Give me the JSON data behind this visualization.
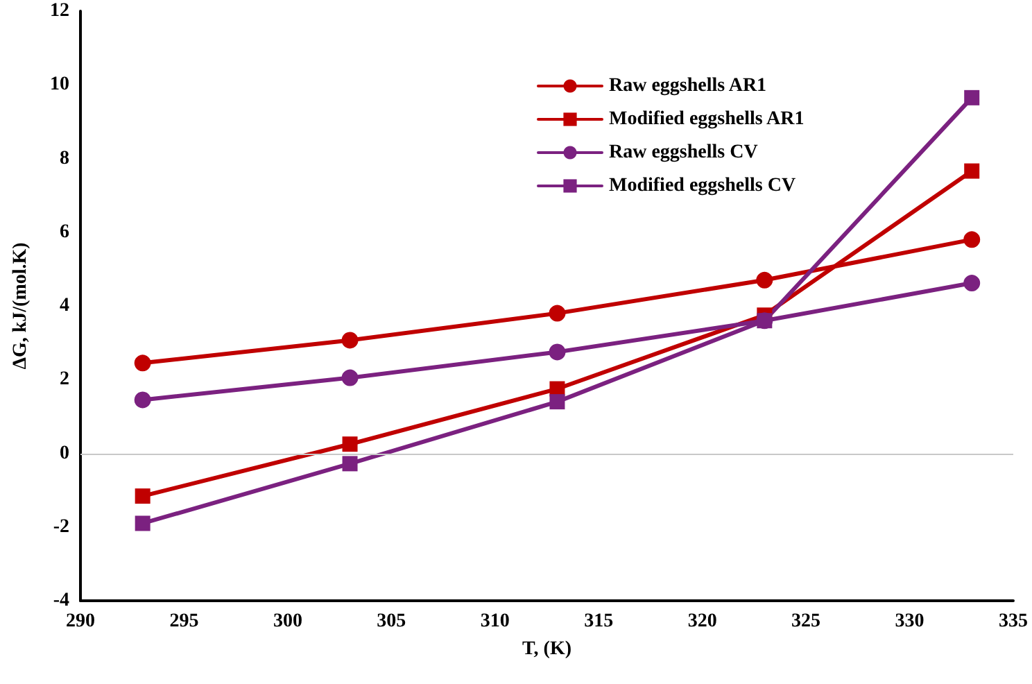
{
  "chart_data": {
    "type": "line",
    "xlabel": "T, (K)",
    "ylabel": "ΔG, kJ/(mol.K)",
    "x": [
      293,
      303,
      313,
      323,
      333
    ],
    "series": [
      {
        "name": "Raw eggshells AR1",
        "color": "#c00000",
        "marker": "circle",
        "values": [
          2.45,
          3.07,
          3.8,
          4.7,
          5.8
        ]
      },
      {
        "name": "Modified eggshells AR1",
        "color": "#c00000",
        "marker": "square",
        "values": [
          -1.16,
          0.25,
          1.75,
          3.75,
          7.66
        ]
      },
      {
        "name": "Raw eggshells CV",
        "color": "#7b2180",
        "marker": "circle",
        "values": [
          1.45,
          2.05,
          2.75,
          3.6,
          4.62
        ]
      },
      {
        "name": "Modified eggshells CV",
        "color": "#7b2180",
        "marker": "square",
        "values": [
          -1.9,
          -0.28,
          1.4,
          3.6,
          9.65
        ]
      }
    ],
    "xlim": [
      290,
      335
    ],
    "xticks": [
      290,
      295,
      300,
      305,
      310,
      315,
      320,
      325,
      330,
      335
    ],
    "ylim": [
      -4,
      12
    ],
    "yticks": [
      -4,
      -2,
      0,
      2,
      4,
      6,
      8,
      10,
      12
    ],
    "ref_lines": [
      {
        "axis": "y",
        "value": 0,
        "color": "#c8c8c8"
      }
    ],
    "grid": false,
    "legend": "top right"
  }
}
